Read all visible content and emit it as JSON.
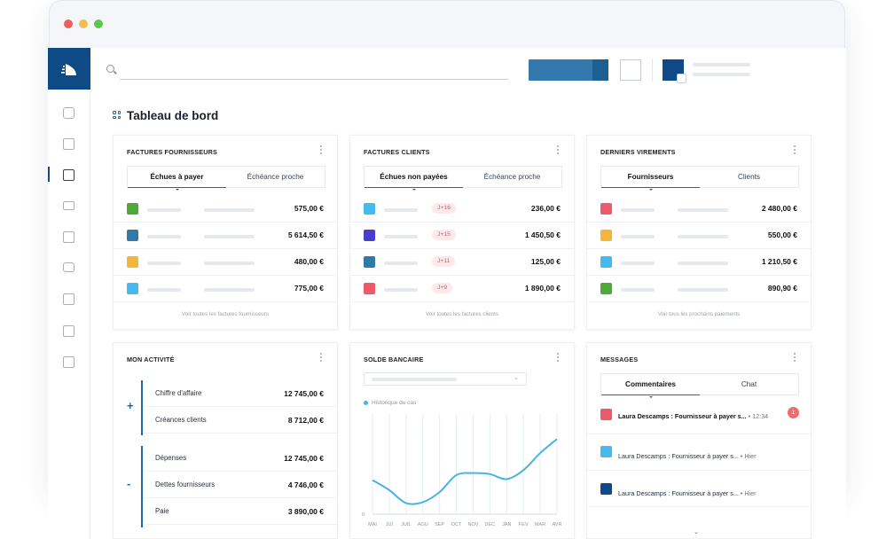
{
  "page": {
    "title": "Tableau de bord"
  },
  "colors": {
    "brand": "#0d4a86",
    "accent": "#1c6aa8",
    "chart_line": "#4ab3e0"
  },
  "sidebar": {
    "icons": [
      "logo-icon",
      "dashboard-icon",
      "buildings-icon",
      "invoices-icon",
      "mail-icon",
      "payments-icon",
      "wallet-icon",
      "documents-icon",
      "table-icon",
      "store-icon"
    ]
  },
  "cards": {
    "supplier_invoices": {
      "title": "FACTURES FOURNISSEURS",
      "tabs": [
        "Échues à payer",
        "Échéance proche"
      ],
      "rows": [
        {
          "color": "#4ea93b",
          "amount": "575,00 €"
        },
        {
          "color": "#2f7aa6",
          "amount": "5 614,50 €"
        },
        {
          "color": "#f2b63b",
          "amount": "480,00 €"
        },
        {
          "color": "#46b9ef",
          "amount": "775,00 €"
        }
      ],
      "link": "Voir toutes les factures fournisseurs"
    },
    "client_invoices": {
      "title": "FACTURES CLIENTS",
      "tabs": [
        "Échues non payées",
        "Échéance proche"
      ],
      "rows": [
        {
          "color": "#46b9ef",
          "badge": "J+16",
          "amount": "236,00 €"
        },
        {
          "color": "#4a3fcb",
          "badge": "J+15",
          "amount": "1 450,50 €"
        },
        {
          "color": "#2f7aa6",
          "badge": "J+11",
          "amount": "125,00 €"
        },
        {
          "color": "#ee5a6a",
          "badge": "J+9",
          "amount": "1 890,00 €"
        }
      ],
      "link": "Voir toutes les factures clients"
    },
    "last_transfers": {
      "title": "DERNIERS VIREMENTS",
      "tabs": [
        "Fournisseurs",
        "Clients"
      ],
      "rows": [
        {
          "color": "#ee5a6a",
          "amount": "2 480,00 €"
        },
        {
          "color": "#f2b63b",
          "amount": "550,00 €"
        },
        {
          "color": "#46b9ef",
          "amount": "1 210,50 €"
        },
        {
          "color": "#4ea93b",
          "amount": "890,90 €"
        }
      ],
      "link": "Voir tous les prochains paiements"
    },
    "activity": {
      "title": "MON ACTIVITÉ",
      "plus_sign": "+",
      "minus_sign": "-",
      "income": [
        {
          "label": "Chiffre d'affaire",
          "value": "12 745,00 €"
        },
        {
          "label": "Créances clients",
          "value": "8 712,00 €"
        }
      ],
      "expenses": [
        {
          "label": "Dépenses",
          "value": "12 745,00 €"
        },
        {
          "label": "Dettes fournisseurs",
          "value": "4 746,00 €"
        },
        {
          "label": "Paie",
          "value": "3 890,00 €"
        }
      ]
    },
    "bank_balance": {
      "title": "SOLDE BANCAIRE",
      "legend": "Historique du cas"
    },
    "messages": {
      "title": "MESSAGES",
      "tabs": [
        "Commentaires",
        "Chat"
      ],
      "items": [
        {
          "color": "#ee5a6a",
          "sender": "Laura Descamps : Fournisseur à payer s...",
          "time": "12:34",
          "unread": "1"
        },
        {
          "color": "#46b9ef",
          "sender": "Laura Descamps : Fournisseur à payer s...",
          "time": "Hier"
        },
        {
          "color": "#0d4a86",
          "sender": "Laura Descamps : Fournisseur à payer s...",
          "time": "Hier"
        }
      ]
    }
  },
  "chart_data": {
    "type": "line",
    "title": "SOLDE BANCAIRE",
    "categories": [
      "MAI",
      "JUI",
      "JUIL",
      "AOU",
      "SEP",
      "OCT",
      "NOV",
      "DEC",
      "JAN",
      "FEV",
      "MAR",
      "AVR"
    ],
    "series": [
      {
        "name": "Historique du cas",
        "values": [
          34,
          24,
          11,
          12,
          22,
          39,
          41,
          40,
          35,
          44,
          61,
          75
        ]
      }
    ],
    "y_ticks": [
      "0"
    ],
    "ylim": [
      0,
      100
    ],
    "grid": "vertical"
  }
}
